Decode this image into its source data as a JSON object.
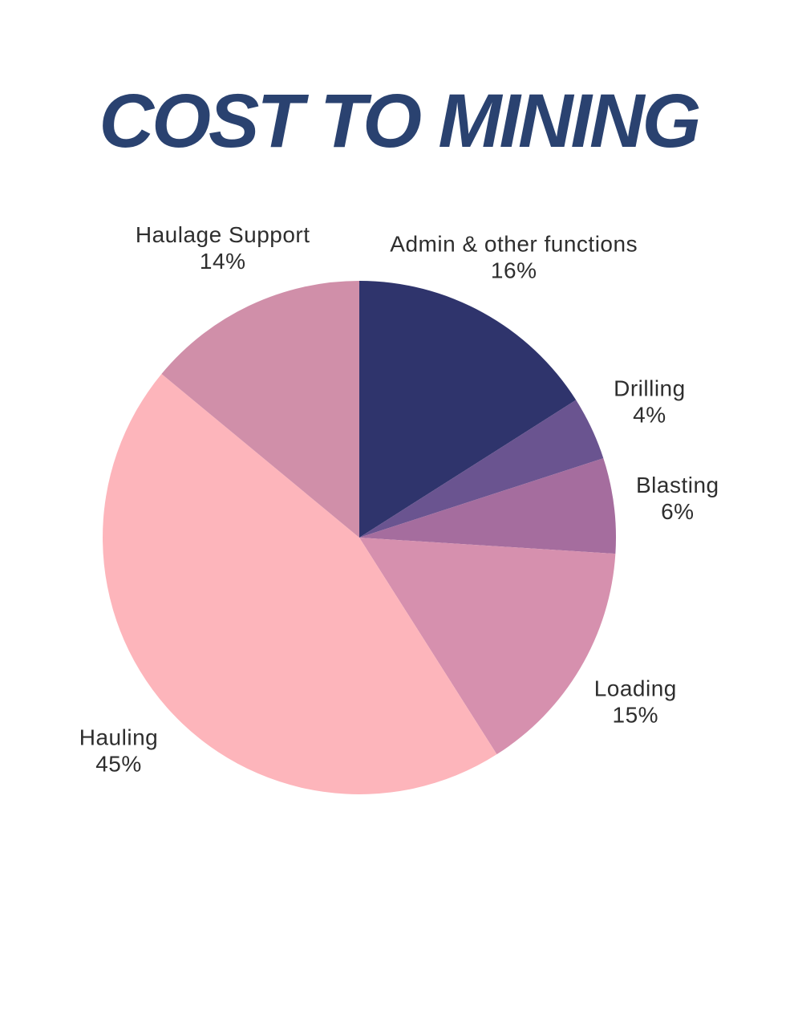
{
  "title": {
    "text": "COST TO MINING",
    "color": "#2a4270"
  },
  "chart_data": {
    "type": "pie",
    "title": "COST TO MINING",
    "labels": [
      "Admin & other functions",
      "Drilling",
      "Blasting",
      "Loading",
      "Hauling",
      "Haulage Support"
    ],
    "values": [
      16,
      4,
      6,
      15,
      45,
      14
    ],
    "unit": "%",
    "colors": [
      "#2f346c",
      "#6a5490",
      "#a56d9e",
      "#d690ae",
      "#fdb5bb",
      "#d08fa9"
    ],
    "start_angle_deg": -90,
    "direction": "clockwise",
    "labels_position": "outside",
    "label_color": "#2e2e2e",
    "legend": "none",
    "background": "#ffffff"
  }
}
